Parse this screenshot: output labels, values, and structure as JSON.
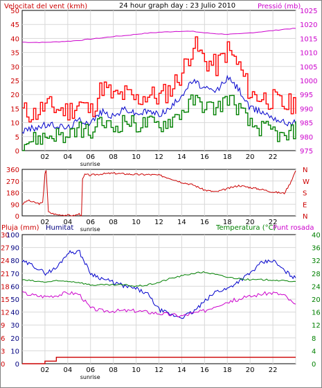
{
  "chart_data": [
    {
      "type": "line",
      "title": "24 hour graph day : 23 Julio 2010",
      "left_label": "Velocitat del vent (kmh)",
      "right_label": "Pressió (mb)",
      "x_tick_labels": [
        "02",
        "04",
        "06",
        "08",
        "10",
        "12",
        "14",
        "16",
        "18",
        "20",
        "22"
      ],
      "sunrise_label": "sunrise",
      "ylim_left": [
        0,
        50
      ],
      "ylim_right": [
        975,
        1025
      ],
      "y_ticks_left": [
        "0",
        "5",
        "10",
        "15",
        "20",
        "25",
        "30",
        "35",
        "40",
        "45",
        "50"
      ],
      "y_ticks_right": [
        "975",
        "980",
        "985",
        "990",
        "995",
        "1000",
        "1005",
        "1010",
        "1015",
        "1020",
        "1025"
      ],
      "grid": true,
      "x_hours": [
        0,
        1,
        2,
        3,
        4,
        5,
        6,
        7,
        8,
        9,
        10,
        11,
        12,
        13,
        14,
        15,
        16,
        17,
        18,
        19,
        20,
        21,
        22,
        23,
        24
      ],
      "series": [
        {
          "color": "#ff0000",
          "axis": "left",
          "values": [
            14,
            13,
            16,
            15,
            14,
            17,
            14,
            23,
            19,
            20,
            18,
            20,
            19,
            22,
            28,
            38,
            32,
            30,
            36,
            30,
            20,
            19,
            18,
            16,
            17
          ]
        },
        {
          "color": "#0000cc",
          "axis": "left",
          "values": [
            7,
            8,
            9,
            9,
            8,
            11,
            10,
            14,
            12,
            15,
            13,
            14,
            13,
            15,
            20,
            25,
            22,
            21,
            26,
            22,
            15,
            14,
            12,
            10,
            10
          ]
        },
        {
          "color": "#008000",
          "axis": "left",
          "values": [
            3,
            4,
            5,
            6,
            4,
            8,
            6,
            10,
            8,
            11,
            9,
            10,
            9,
            11,
            14,
            18,
            16,
            15,
            19,
            15,
            9,
            8,
            7,
            4,
            8
          ]
        },
        {
          "color": "#cc00cc",
          "axis": "right",
          "values": [
            1013.7,
            1013.6,
            1013.6,
            1013.8,
            1014.0,
            1014.3,
            1014.8,
            1015.2,
            1015.7,
            1016.0,
            1016.5,
            1016.9,
            1017.2,
            1017.4,
            1017.6,
            1017.5,
            1017.0,
            1016.7,
            1016.5,
            1016.6,
            1017.0,
            1017.4,
            1017.8,
            1018.3,
            1018.6
          ]
        }
      ]
    },
    {
      "type": "line",
      "ylim": [
        0,
        360
      ],
      "y_ticks_left": [
        "0",
        "90",
        "180",
        "270",
        "360"
      ],
      "y_ticks_right": [
        "N",
        "E",
        "S",
        "W",
        "N"
      ],
      "x_tick_labels": [
        "02",
        "04",
        "06",
        "08",
        "10",
        "12",
        "14",
        "16",
        "18",
        "20",
        "22"
      ],
      "sunrise_label": "sunrise",
      "grid": true,
      "x_hours": [
        0,
        0.5,
        1,
        1.5,
        1.8,
        2,
        2.1,
        2.3,
        2.6,
        3,
        4,
        4.5,
        5,
        5.2,
        5.3,
        5.5,
        6,
        7,
        8,
        9,
        10,
        11,
        12,
        13,
        14,
        15,
        16,
        17,
        18,
        19,
        20,
        21,
        22,
        23,
        23.5,
        24
      ],
      "series": [
        {
          "color": "#cc0000",
          "values": [
            90,
            120,
            105,
            95,
            100,
            330,
            355,
            30,
            20,
            10,
            5,
            0,
            15,
            5,
            280,
            320,
            315,
            325,
            330,
            325,
            320,
            320,
            315,
            290,
            260,
            240,
            200,
            185,
            210,
            235,
            220,
            205,
            185,
            175,
            250,
            350
          ]
        }
      ]
    },
    {
      "type": "line",
      "title_left_1": "Pluja (mm)",
      "title_left_2": "Humitat",
      "title_right_1": "Temperatura (°C)",
      "title_right_2": "Punt rosada",
      "ylim_rain": [
        0,
        30
      ],
      "ylim_humidity": [
        0,
        100
      ],
      "ylim_temp": [
        0,
        40
      ],
      "y_ticks_rain": [
        "0",
        "3",
        "6",
        "9",
        "12",
        "15",
        "18",
        "21",
        "24",
        "27",
        "30"
      ],
      "y_ticks_humidity": [
        "0",
        "10",
        "20",
        "30",
        "40",
        "50",
        "60",
        "70",
        "80",
        "90",
        "100"
      ],
      "y_ticks_temp": [
        "0",
        "4",
        "8",
        "12",
        "16",
        "20",
        "24",
        "28",
        "32",
        "36",
        "40"
      ],
      "x_tick_labels": [
        "02",
        "04",
        "06",
        "08",
        "10",
        "12",
        "14",
        "16",
        "18",
        "20",
        "22"
      ],
      "sunrise_label": "sunrise",
      "grid": true,
      "x_hours": [
        0,
        1,
        2,
        3,
        4,
        5,
        6,
        7,
        8,
        9,
        10,
        11,
        12,
        13,
        14,
        15,
        16,
        17,
        18,
        19,
        20,
        21,
        22,
        23,
        24
      ],
      "series": [
        {
          "color": "#0000cc",
          "unit": "humidity",
          "values": [
            79,
            76,
            70,
            74,
            86,
            87,
            70,
            66,
            63,
            60,
            58,
            54,
            42,
            38,
            36,
            40,
            48,
            56,
            58,
            64,
            70,
            78,
            80,
            72,
            66
          ]
        },
        {
          "color": "#008000",
          "unit": "temp",
          "values": [
            26.0,
            25.6,
            25.3,
            25.6,
            25.6,
            25.2,
            24.4,
            24.4,
            24.4,
            24.4,
            24.0,
            24.4,
            25.2,
            26.4,
            27.2,
            28.0,
            28.4,
            27.6,
            26.8,
            26.4,
            26.0,
            26.0,
            26.0,
            25.6,
            25.6
          ]
        },
        {
          "color": "#cc00cc",
          "unit": "temp",
          "values": [
            22.0,
            21.2,
            20.8,
            21.2,
            22.0,
            21.6,
            17.2,
            16.4,
            16.4,
            16.4,
            16.4,
            16.0,
            15.6,
            15.2,
            14.8,
            15.6,
            16.4,
            18.0,
            19.2,
            20.0,
            20.8,
            21.6,
            22.0,
            21.2,
            18.0
          ]
        },
        {
          "color": "#cc0000",
          "unit": "rain",
          "values": [
            0,
            0,
            0.6,
            1.5,
            1.5,
            1.5,
            1.5,
            1.5,
            1.5,
            1.5,
            1.5,
            1.5,
            1.5,
            1.5,
            1.5,
            1.5,
            1.5,
            1.5,
            1.5,
            1.5,
            1.5,
            1.5,
            1.5,
            1.5,
            1.5
          ]
        }
      ]
    }
  ]
}
